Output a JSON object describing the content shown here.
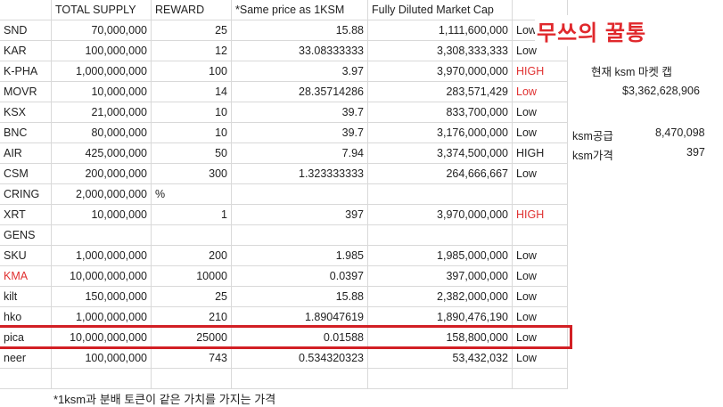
{
  "headers": [
    "",
    "TOTAL SUPPLY",
    "REWARD",
    "*Same price as 1KSM",
    "Fully Diluted Market Cap",
    ""
  ],
  "rows": [
    {
      "name": "SND",
      "supply": "70,000,000",
      "reward": "25",
      "price": "15.88",
      "cap": "1,111,600,000",
      "risk": "Low",
      "red": false
    },
    {
      "name": "KAR",
      "supply": "100,000,000",
      "reward": "12",
      "price": "33.08333333",
      "cap": "3,308,333,333",
      "risk": "Low",
      "red": false
    },
    {
      "name": "K-PHA",
      "supply": "1,000,000,000",
      "reward": "100",
      "price": "3.97",
      "cap": "3,970,000,000",
      "risk": "HIGH",
      "red": false,
      "riskRed": true
    },
    {
      "name": "MOVR",
      "supply": "10,000,000",
      "reward": "14",
      "price": "28.35714286",
      "cap": "283,571,429",
      "risk": "Low",
      "red": false,
      "riskRed": true
    },
    {
      "name": "KSX",
      "supply": "21,000,000",
      "reward": "10",
      "price": "39.7",
      "cap": "833,700,000",
      "risk": "Low",
      "red": false
    },
    {
      "name": "BNC",
      "supply": "80,000,000",
      "reward": "10",
      "price": "39.7",
      "cap": "3,176,000,000",
      "risk": "Low",
      "red": false
    },
    {
      "name": "AIR",
      "supply": "425,000,000",
      "reward": "50",
      "price": "7.94",
      "cap": "3,374,500,000",
      "risk": "HIGH",
      "red": false
    },
    {
      "name": "CSM",
      "supply": "200,000,000",
      "reward": "300",
      "price": "1.323333333",
      "cap": "264,666,667",
      "risk": "Low",
      "red": false
    },
    {
      "name": "CRING",
      "supply": "2,000,000,000",
      "reward": "%",
      "price": "",
      "cap": "",
      "risk": "",
      "red": false,
      "rewardLeft": true
    },
    {
      "name": "XRT",
      "supply": "10,000,000",
      "reward": "1",
      "price": "397",
      "cap": "3,970,000,000",
      "risk": "HIGH",
      "red": false,
      "riskRed": true
    },
    {
      "name": "GENS",
      "supply": "",
      "reward": "",
      "price": "",
      "cap": "",
      "risk": "",
      "red": false
    },
    {
      "name": "SKU",
      "supply": "1,000,000,000",
      "reward": "200",
      "price": "1.985",
      "cap": "1,985,000,000",
      "risk": "Low",
      "red": false
    },
    {
      "name": "KMA",
      "supply": "10,000,000,000",
      "reward": "10000",
      "price": "0.0397",
      "cap": "397,000,000",
      "risk": "Low",
      "red": true
    },
    {
      "name": "kilt",
      "supply": "150,000,000",
      "reward": "25",
      "price": "15.88",
      "cap": "2,382,000,000",
      "risk": "Low",
      "red": false
    },
    {
      "name": "hko",
      "supply": "1,000,000,000",
      "reward": "210",
      "price": "1.89047619",
      "cap": "1,890,476,190",
      "risk": "Low",
      "red": false
    },
    {
      "name": "pica",
      "supply": "10,000,000,000",
      "reward": "25000",
      "price": "0.01588",
      "cap": "158,800,000",
      "risk": "Low",
      "red": false
    },
    {
      "name": "neer",
      "supply": "100,000,000",
      "reward": "743",
      "price": "0.534320323",
      "cap": "53,432,032",
      "risk": "Low",
      "red": false
    }
  ],
  "title": "무쓰의 꿀통",
  "market_cap_label": "현재 ksm 마켓 캡",
  "market_cap_value": "$3,362,628,906",
  "ksm_supply_label": "ksm공급",
  "ksm_supply_value": "8,470,098",
  "ksm_price_label": "ksm가격",
  "ksm_price_value": "397",
  "footnote": "*1ksm과 분배 토큰이 같은 가치를 가지는 가격",
  "colors": {
    "accent_red": "#e0282c",
    "highlight_border": "#d21f24",
    "grid": "#d9d9d9"
  }
}
